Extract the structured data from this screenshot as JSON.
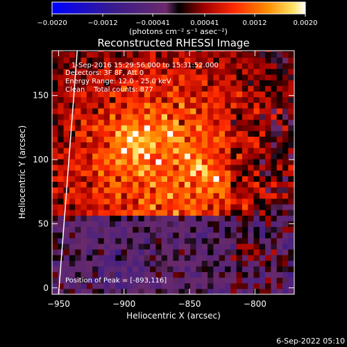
{
  "chart_data": {
    "type": "heatmap",
    "title": "Reconstructed RHESSI Image",
    "xlabel": "Heliocentric X (arcsec)",
    "ylabel": "Heliocentric Y (arcsec)",
    "xlim": [
      -955,
      -770
    ],
    "ylim": [
      -5,
      185
    ],
    "x_ticks": [
      -950,
      -900,
      -850,
      -800
    ],
    "y_ticks": [
      0,
      50,
      100,
      150
    ],
    "colorbar": {
      "vmin": -0.002,
      "vmax": 0.002,
      "tick_values": [
        -0.002,
        -0.0012,
        -0.00041,
        0.00041,
        0.0012,
        0.002
      ],
      "tick_labels": [
        "-0.0020",
        "-0.0012",
        "-0.00041",
        "0.00041",
        "0.0012",
        "0.0020"
      ],
      "unit_label": "(photons cm⁻² s⁻¹ asec⁻²)"
    },
    "annotations": [
      "1-Sep-2016 15:29:56.000 to 15:31:52.000",
      "Detectors: 3F 8F, Att 0",
      "Energy Range: 12.0 - 25.0 keV",
      "Clean    Total counts: 877"
    ],
    "peak_label": "Position of Peak = [-893,116]",
    "peak": [
      -893,
      116
    ],
    "limb_color": "#ffffff",
    "background": "#000000"
  },
  "footer": {
    "timestamp": "6-Sep-2022 05:10"
  }
}
